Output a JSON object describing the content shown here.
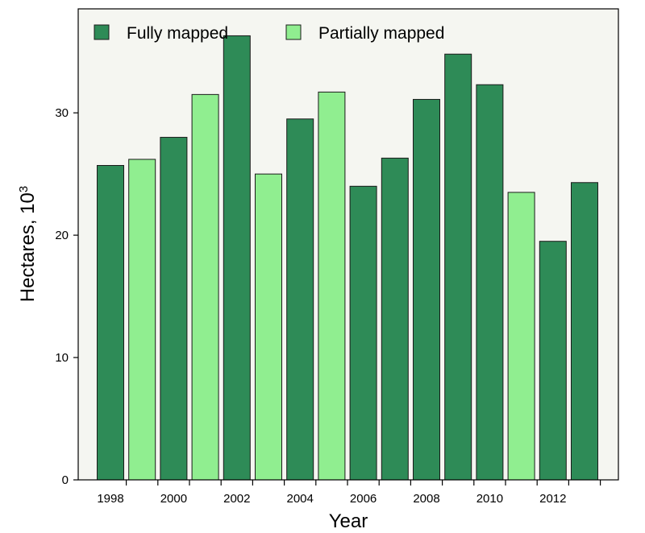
{
  "chart_data": {
    "type": "bar",
    "title": "",
    "xlabel": "Year",
    "ylabel": "Hectares, 10",
    "ylabel_superscript": "3",
    "ylim": [
      0,
      38.5
    ],
    "yticks": [
      0,
      10,
      20,
      30
    ],
    "xtick_labels": [
      "1998",
      "2000",
      "2002",
      "2004",
      "2006",
      "2008",
      "2010",
      "2012"
    ],
    "legend_position": "top-left",
    "series": [
      {
        "name": "Fully mapped",
        "color": "#2e8b57"
      },
      {
        "name": "Partially mapped",
        "color": "#90ee90"
      }
    ],
    "bars": [
      {
        "year": 1998,
        "value": 25.7,
        "series": 0
      },
      {
        "year": 1999,
        "value": 26.2,
        "series": 1
      },
      {
        "year": 2000,
        "value": 28.0,
        "series": 0
      },
      {
        "year": 2001,
        "value": 31.5,
        "series": 1
      },
      {
        "year": 2002,
        "value": 36.3,
        "series": 0
      },
      {
        "year": 2003,
        "value": 25.0,
        "series": 1
      },
      {
        "year": 2004,
        "value": 29.5,
        "series": 0
      },
      {
        "year": 2005,
        "value": 31.7,
        "series": 1
      },
      {
        "year": 2006,
        "value": 24.0,
        "series": 0
      },
      {
        "year": 2007,
        "value": 26.3,
        "series": 0
      },
      {
        "year": 2008,
        "value": 31.1,
        "series": 0
      },
      {
        "year": 2009,
        "value": 34.8,
        "series": 0
      },
      {
        "year": 2010,
        "value": 32.3,
        "series": 0
      },
      {
        "year": 2011,
        "value": 23.5,
        "series": 1
      },
      {
        "year": 2012,
        "value": 19.5,
        "series": 0
      },
      {
        "year": 2013,
        "value": 24.3,
        "series": 0
      }
    ],
    "colors": {
      "plot_background": "#f5f6f1",
      "bar_edge": "#1a1a1a"
    }
  }
}
